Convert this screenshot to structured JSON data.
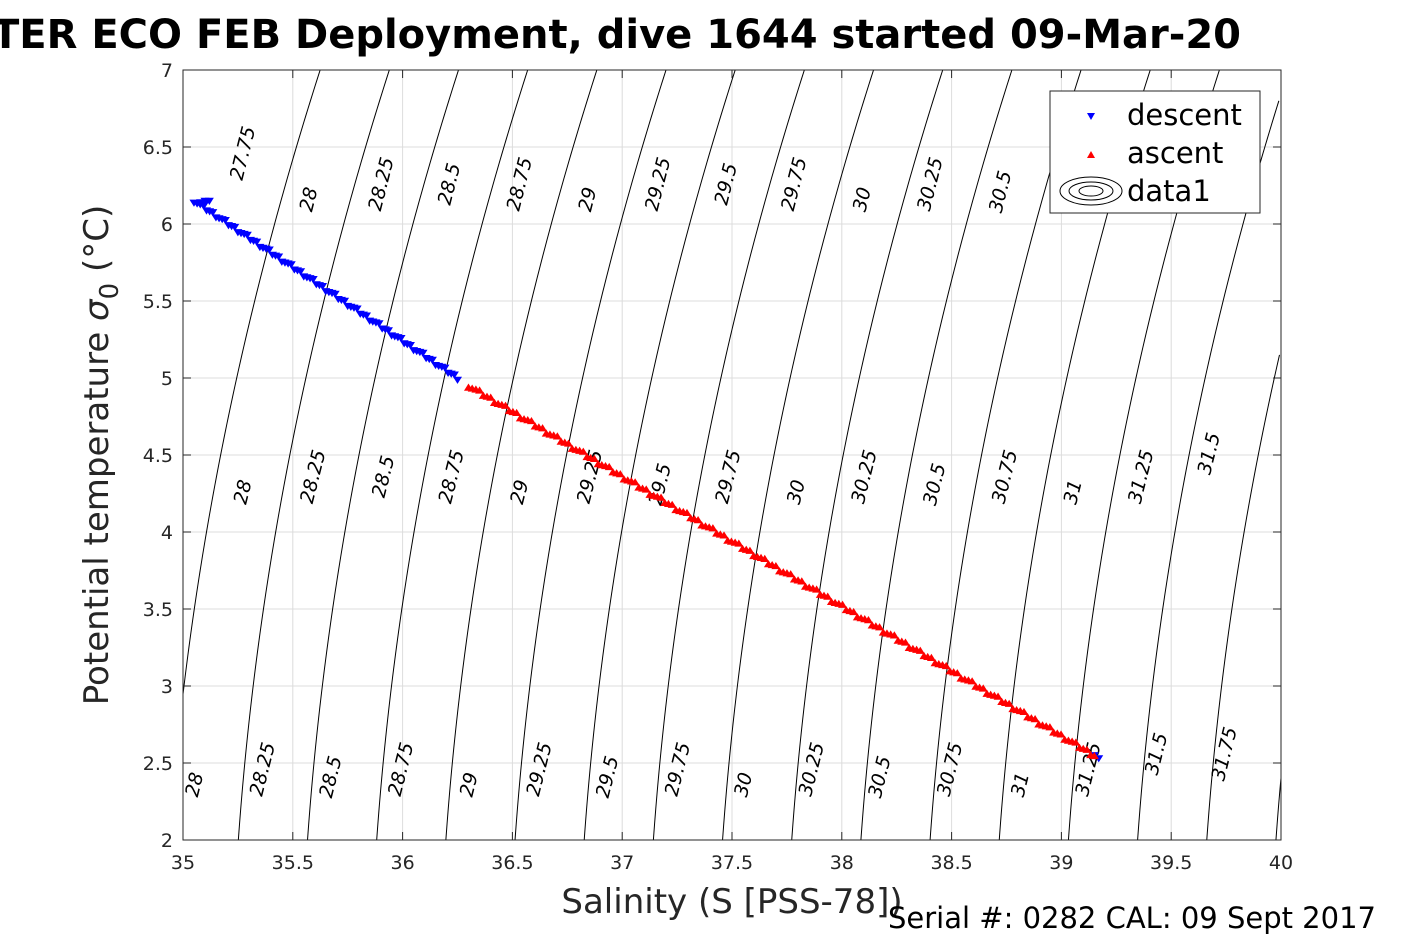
{
  "chart_data": {
    "type": "scatter",
    "title": "TER ECO FEB Deployment, dive 1644 started 09-Mar-20",
    "xlabel": "Salinity (S [PSS-78])",
    "ylabel_main": "Potential temperature ",
    "ylabel_sigma": "σ",
    "ylabel_sub": "0",
    "ylabel_unit": " (°C)",
    "xlim": [
      35,
      40
    ],
    "ylim": [
      2,
      7
    ],
    "xticks": [
      35,
      35.5,
      36,
      36.5,
      37,
      37.5,
      38,
      38.5,
      39,
      39.5,
      40
    ],
    "xtick_labels": [
      "35",
      "35.5",
      "36",
      "36.5",
      "37",
      "37.5",
      "38",
      "38.5",
      "39",
      "39.5",
      "40"
    ],
    "yticks": [
      2,
      2.5,
      3,
      3.5,
      4,
      4.5,
      5,
      5.5,
      6,
      6.5,
      7
    ],
    "ytick_labels": [
      "2",
      "2.5",
      "3",
      "3.5",
      "4",
      "4.5",
      "5",
      "5.5",
      "6",
      "6.5",
      "7"
    ],
    "grid": true,
    "legend_position": "top-right",
    "legend": [
      "descent",
      "ascent",
      "data1"
    ],
    "series": [
      {
        "name": "descent",
        "color": "#0000ff",
        "marker": "triangle-down",
        "x_start": 35.05,
        "x_end": 36.25,
        "y_start": 6.15,
        "y_end": 5.0,
        "points": 85,
        "extra_points": [
          [
            35.08,
            6.14
          ],
          [
            35.1,
            6.15
          ],
          [
            35.12,
            6.15
          ],
          [
            35.1,
            6.13
          ],
          [
            39.15,
            2.55
          ],
          [
            39.17,
            2.53
          ]
        ]
      },
      {
        "name": "ascent",
        "color": "#ff0000",
        "marker": "triangle-up",
        "x_start": 36.3,
        "x_end": 39.15,
        "y_start": 4.95,
        "y_end": 2.55,
        "points": 170
      },
      {
        "name": "data1",
        "type": "contour",
        "color": "#000000",
        "levels": [
          27.75,
          28,
          28.25,
          28.5,
          28.75,
          29,
          29.25,
          29.5,
          29.75,
          30,
          30.25,
          30.5,
          30.75,
          31,
          31.25,
          31.5,
          31.75
        ]
      }
    ],
    "contour_labels": [
      {
        "text": "27.75",
        "x": 35.3,
        "y": 6.45
      },
      {
        "text": "28",
        "x": 35.6,
        "y": 6.15
      },
      {
        "text": "28.25",
        "x": 35.93,
        "y": 6.25
      },
      {
        "text": "28.5",
        "x": 36.24,
        "y": 6.25
      },
      {
        "text": "28.75",
        "x": 36.56,
        "y": 6.25
      },
      {
        "text": "29",
        "x": 36.87,
        "y": 6.15
      },
      {
        "text": "29.25",
        "x": 37.19,
        "y": 6.25
      },
      {
        "text": "29.5",
        "x": 37.5,
        "y": 6.25
      },
      {
        "text": "29.75",
        "x": 37.81,
        "y": 6.25
      },
      {
        "text": "30",
        "x": 38.12,
        "y": 6.15
      },
      {
        "text": "30.25",
        "x": 38.43,
        "y": 6.25
      },
      {
        "text": "30.5",
        "x": 38.75,
        "y": 6.2
      },
      {
        "text": "28",
        "x": 35.3,
        "y": 4.25
      },
      {
        "text": "28.25",
        "x": 35.62,
        "y": 4.35
      },
      {
        "text": "28.5",
        "x": 35.94,
        "y": 4.35
      },
      {
        "text": "28.75",
        "x": 36.25,
        "y": 4.35
      },
      {
        "text": "29",
        "x": 36.56,
        "y": 4.25
      },
      {
        "text": "29.25",
        "x": 36.88,
        "y": 4.35
      },
      {
        "text": "29.5",
        "x": 37.2,
        "y": 4.3
      },
      {
        "text": "29.75",
        "x": 37.51,
        "y": 4.35
      },
      {
        "text": "30",
        "x": 37.82,
        "y": 4.25
      },
      {
        "text": "30.25",
        "x": 38.13,
        "y": 4.35
      },
      {
        "text": "30.5",
        "x": 38.45,
        "y": 4.3
      },
      {
        "text": "30.75",
        "x": 38.77,
        "y": 4.35
      },
      {
        "text": "31",
        "x": 39.08,
        "y": 4.25
      },
      {
        "text": "31.25",
        "x": 39.39,
        "y": 4.35
      },
      {
        "text": "31.5",
        "x": 39.7,
        "y": 4.5
      },
      {
        "text": "28",
        "x": 35.08,
        "y": 2.35
      },
      {
        "text": "28.25",
        "x": 35.39,
        "y": 2.45
      },
      {
        "text": "28.5",
        "x": 35.7,
        "y": 2.4
      },
      {
        "text": "28.75",
        "x": 36.02,
        "y": 2.45
      },
      {
        "text": "29",
        "x": 36.33,
        "y": 2.35
      },
      {
        "text": "29.25",
        "x": 36.65,
        "y": 2.45
      },
      {
        "text": "29.5",
        "x": 36.96,
        "y": 2.4
      },
      {
        "text": "29.75",
        "x": 37.28,
        "y": 2.45
      },
      {
        "text": "30",
        "x": 37.58,
        "y": 2.35
      },
      {
        "text": "30.25",
        "x": 37.89,
        "y": 2.45
      },
      {
        "text": "30.5",
        "x": 38.2,
        "y": 2.4
      },
      {
        "text": "30.75",
        "x": 38.52,
        "y": 2.45
      },
      {
        "text": "31",
        "x": 38.84,
        "y": 2.35
      },
      {
        "text": "31.25",
        "x": 39.15,
        "y": 2.45
      },
      {
        "text": "31.5",
        "x": 39.46,
        "y": 2.55
      },
      {
        "text": "31.75",
        "x": 39.77,
        "y": 2.55
      }
    ]
  },
  "footer": {
    "serial_text": "Serial #: 0282  CAL: 09 Sept 2017"
  }
}
